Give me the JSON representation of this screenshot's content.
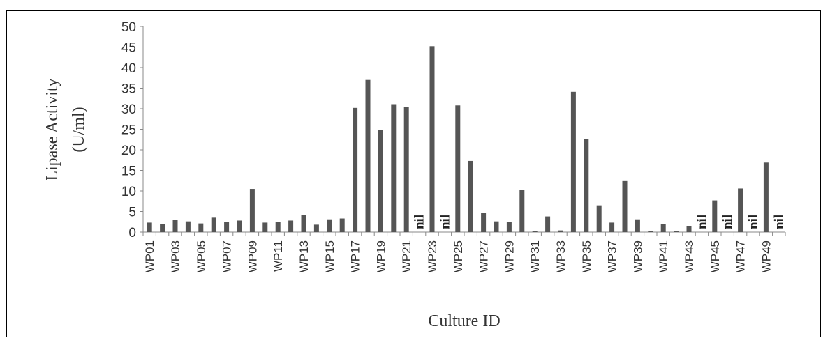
{
  "chart_data": {
    "type": "bar",
    "title": "",
    "ylabel_line1": "Lipase Activity",
    "ylabel_line2": "(U/ml)",
    "xlabel": "Culture ID",
    "ylim": [
      0,
      50
    ],
    "yticks": [
      0,
      5,
      10,
      15,
      20,
      25,
      30,
      35,
      40,
      45,
      50
    ],
    "grid": false,
    "bar_color": "#555555",
    "categories": [
      "WP01",
      "WP02",
      "WP03",
      "WP04",
      "WP05",
      "WP06",
      "WP07",
      "WP08",
      "WP09",
      "WP10",
      "WP11",
      "WP12",
      "WP13",
      "WP14",
      "WP15",
      "WP16",
      "WP17",
      "WP18",
      "WP19",
      "WP20",
      "WP21",
      "WP22",
      "WP23",
      "WP24",
      "WP25",
      "WP26",
      "WP27",
      "WP28",
      "WP29",
      "WP30",
      "WP31",
      "WP32",
      "WP33",
      "WP34",
      "WP35",
      "WP36",
      "WP37",
      "WP38",
      "WP39",
      "WP40",
      "WP41",
      "WP42",
      "WP43",
      "WP44",
      "WP45",
      "WP46",
      "WP47",
      "WP48",
      "WP49",
      "WP50"
    ],
    "shown_category_labels": [
      "WP01",
      "WP03",
      "WP05",
      "WP07",
      "WP09",
      "WP11",
      "WP13",
      "WP15",
      "WP17",
      "WP19",
      "WP21",
      "WP23",
      "WP25",
      "WP27",
      "WP29",
      "WP31",
      "WP33",
      "WP35",
      "WP37",
      "WP39",
      "WP41",
      "WP43",
      "WP45",
      "WP47",
      "WP49"
    ],
    "values": [
      2.3,
      1.9,
      3.0,
      2.6,
      2.1,
      3.5,
      2.4,
      2.8,
      10.5,
      2.3,
      2.4,
      2.8,
      4.2,
      1.8,
      3.1,
      3.3,
      30.2,
      37.0,
      24.8,
      31.1,
      30.5,
      null,
      45.2,
      null,
      30.8,
      17.3,
      4.6,
      2.6,
      2.4,
      10.3,
      0.3,
      3.8,
      0.4,
      34.1,
      22.7,
      6.5,
      2.3,
      12.4,
      3.1,
      0.3,
      2.0,
      0.3,
      1.5,
      null,
      7.7,
      null,
      10.6,
      null,
      16.9,
      null
    ],
    "nil_label": "nil"
  }
}
